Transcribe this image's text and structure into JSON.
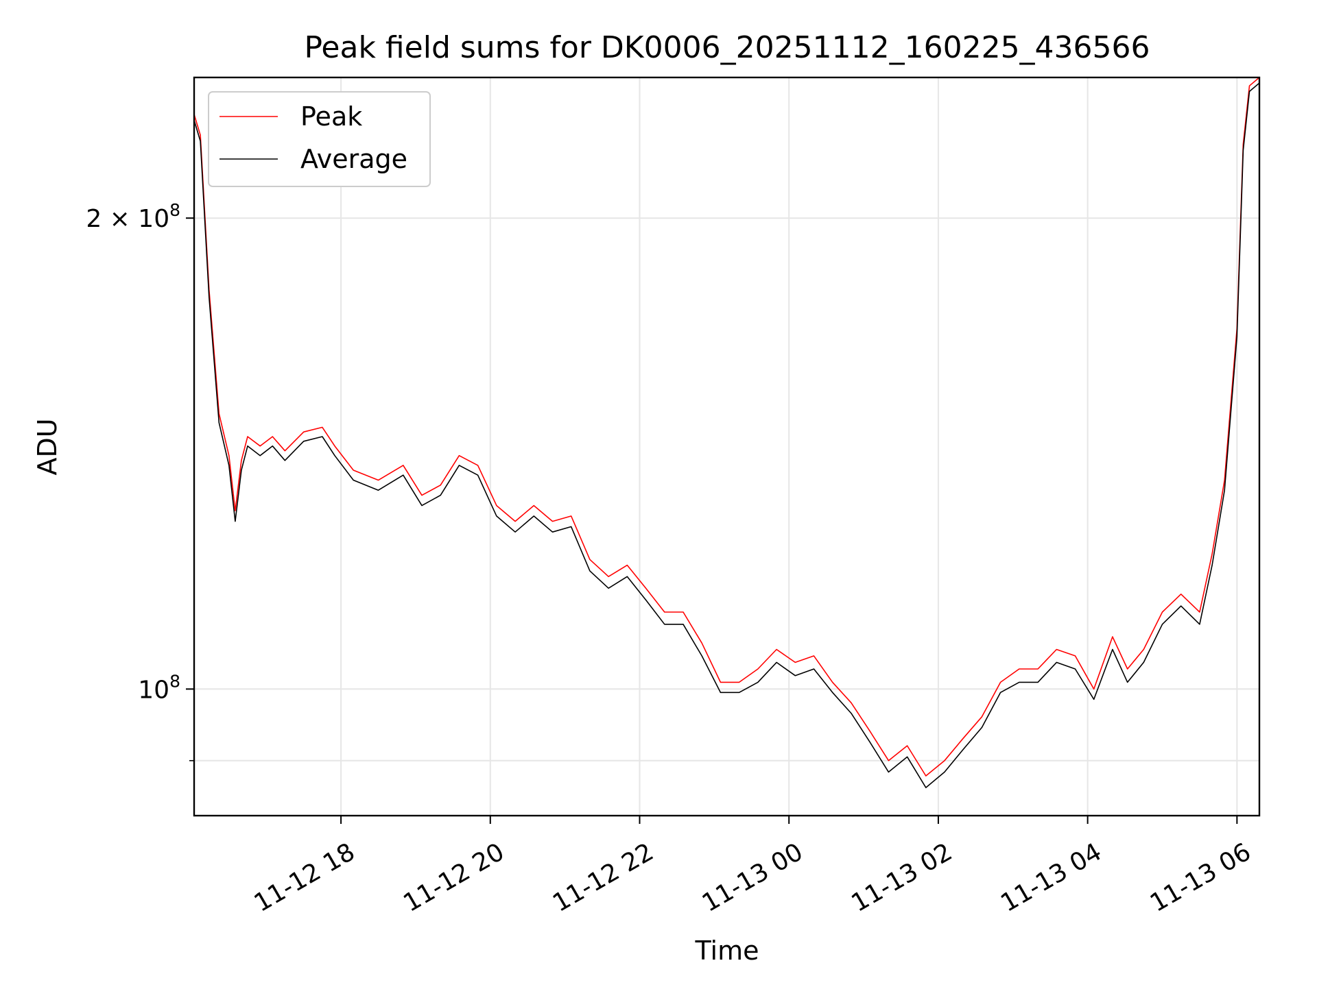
{
  "chart_data": {
    "type": "line",
    "title": "Peak field sums for DK0006_20251112_160225_436566",
    "xlabel": "Time",
    "ylabel": "ADU",
    "xscale": "time",
    "yscale": "log",
    "xlim": [
      "2025-11-12 16:02",
      "2025-11-13 06:18"
    ],
    "ylim": [
      83000000,
      246000000
    ],
    "xticks": [
      {
        "value": "2025-11-12 18:00",
        "label": "11-12 18"
      },
      {
        "value": "2025-11-12 20:00",
        "label": "11-12 20"
      },
      {
        "value": "2025-11-12 22:00",
        "label": "11-12 22"
      },
      {
        "value": "2025-11-13 00:00",
        "label": "11-13 00"
      },
      {
        "value": "2025-11-13 02:00",
        "label": "11-13 02"
      },
      {
        "value": "2025-11-13 04:00",
        "label": "11-13 04"
      },
      {
        "value": "2025-11-13 06:00",
        "label": "11-13 06"
      }
    ],
    "yticks_major": [
      {
        "value": 100000000,
        "label_base": "10",
        "label_exp": "8",
        "label_prefix": ""
      },
      {
        "value": 200000000,
        "label_base": "10",
        "label_exp": "8",
        "label_prefix": "2 × "
      }
    ],
    "yticks_minor": [
      90000000
    ],
    "grid": true,
    "legend_position": "top-left",
    "series": [
      {
        "name": "Peak",
        "color": "#ff0000",
        "x": [
          "2025-11-12 16:02",
          "2025-11-12 16:07",
          "2025-11-12 16:14",
          "2025-11-12 16:22",
          "2025-11-12 16:30",
          "2025-11-12 16:35",
          "2025-11-12 16:40",
          "2025-11-12 16:45",
          "2025-11-12 16:55",
          "2025-11-12 17:05",
          "2025-11-12 17:15",
          "2025-11-12 17:30",
          "2025-11-12 17:45",
          "2025-11-12 17:55",
          "2025-11-12 18:10",
          "2025-11-12 18:30",
          "2025-11-12 18:50",
          "2025-11-12 19:05",
          "2025-11-12 19:20",
          "2025-11-12 19:35",
          "2025-11-12 19:50",
          "2025-11-12 20:05",
          "2025-11-12 20:20",
          "2025-11-12 20:35",
          "2025-11-12 20:50",
          "2025-11-12 21:05",
          "2025-11-12 21:20",
          "2025-11-12 21:35",
          "2025-11-12 21:50",
          "2025-11-12 22:05",
          "2025-11-12 22:20",
          "2025-11-12 22:35",
          "2025-11-12 22:50",
          "2025-11-12 23:05",
          "2025-11-12 23:20",
          "2025-11-12 23:35",
          "2025-11-12 23:50",
          "2025-11-13 00:05",
          "2025-11-13 00:20",
          "2025-11-13 00:35",
          "2025-11-13 00:50",
          "2025-11-13 01:05",
          "2025-11-13 01:20",
          "2025-11-13 01:35",
          "2025-11-13 01:50",
          "2025-11-13 02:05",
          "2025-11-13 02:20",
          "2025-11-13 02:35",
          "2025-11-13 02:50",
          "2025-11-13 03:05",
          "2025-11-13 03:20",
          "2025-11-13 03:35",
          "2025-11-13 03:50",
          "2025-11-13 04:05",
          "2025-11-13 04:20",
          "2025-11-13 04:32",
          "2025-11-13 04:45",
          "2025-11-13 05:00",
          "2025-11-13 05:15",
          "2025-11-13 05:30",
          "2025-11-13 05:40",
          "2025-11-13 05:50",
          "2025-11-13 06:00",
          "2025-11-13 06:05",
          "2025-11-13 06:10",
          "2025-11-13 06:18"
        ],
        "y": [
          233000000,
          226000000,
          180000000,
          150000000,
          141000000,
          130000000,
          140000000,
          145000000,
          143000000,
          145000000,
          142000000,
          146000000,
          147000000,
          143000000,
          138000000,
          136000000,
          139000000,
          133000000,
          135000000,
          141000000,
          139000000,
          131000000,
          128000000,
          131000000,
          128000000,
          129000000,
          121000000,
          118000000,
          120000000,
          116000000,
          112000000,
          112000000,
          107000000,
          101000000,
          101000000,
          103000000,
          106000000,
          104000000,
          105000000,
          101000000,
          98000000,
          94000000,
          90000000,
          92000000,
          88000000,
          90000000,
          93000000,
          96000000,
          101000000,
          103000000,
          103000000,
          106000000,
          105000000,
          100000000,
          108000000,
          103000000,
          106000000,
          112000000,
          115000000,
          112000000,
          122000000,
          136000000,
          170000000,
          223000000,
          243000000,
          246000000
        ]
      },
      {
        "name": "Average",
        "color": "#000000",
        "x": [
          "2025-11-12 16:02",
          "2025-11-12 16:07",
          "2025-11-12 16:14",
          "2025-11-12 16:22",
          "2025-11-12 16:30",
          "2025-11-12 16:35",
          "2025-11-12 16:40",
          "2025-11-12 16:45",
          "2025-11-12 16:55",
          "2025-11-12 17:05",
          "2025-11-12 17:15",
          "2025-11-12 17:30",
          "2025-11-12 17:45",
          "2025-11-12 17:55",
          "2025-11-12 18:10",
          "2025-11-12 18:30",
          "2025-11-12 18:50",
          "2025-11-12 19:05",
          "2025-11-12 19:20",
          "2025-11-12 19:35",
          "2025-11-12 19:50",
          "2025-11-12 20:05",
          "2025-11-12 20:20",
          "2025-11-12 20:35",
          "2025-11-12 20:50",
          "2025-11-12 21:05",
          "2025-11-12 21:20",
          "2025-11-12 21:35",
          "2025-11-12 21:50",
          "2025-11-12 22:05",
          "2025-11-12 22:20",
          "2025-11-12 22:35",
          "2025-11-12 22:50",
          "2025-11-12 23:05",
          "2025-11-12 23:20",
          "2025-11-12 23:35",
          "2025-11-12 23:50",
          "2025-11-13 00:05",
          "2025-11-13 00:20",
          "2025-11-13 00:35",
          "2025-11-13 00:50",
          "2025-11-13 01:05",
          "2025-11-13 01:20",
          "2025-11-13 01:35",
          "2025-11-13 01:50",
          "2025-11-13 02:05",
          "2025-11-13 02:20",
          "2025-11-13 02:35",
          "2025-11-13 02:50",
          "2025-11-13 03:05",
          "2025-11-13 03:20",
          "2025-11-13 03:35",
          "2025-11-13 03:50",
          "2025-11-13 04:05",
          "2025-11-13 04:20",
          "2025-11-13 04:32",
          "2025-11-13 04:45",
          "2025-11-13 05:00",
          "2025-11-13 05:15",
          "2025-11-13 05:30",
          "2025-11-13 05:40",
          "2025-11-13 05:50",
          "2025-11-13 06:00",
          "2025-11-13 06:05",
          "2025-11-13 06:10",
          "2025-11-13 06:18"
        ],
        "y": [
          231000000,
          224000000,
          178000000,
          148000000,
          139000000,
          128000000,
          138000000,
          143000000,
          141000000,
          143000000,
          140000000,
          144000000,
          145000000,
          141000000,
          136000000,
          134000000,
          137000000,
          131000000,
          133000000,
          139000000,
          137000000,
          129000000,
          126000000,
          129000000,
          126000000,
          127000000,
          119000000,
          116000000,
          118000000,
          114000000,
          110000000,
          110000000,
          105000000,
          99500000,
          99500000,
          101000000,
          104000000,
          102000000,
          103000000,
          99500000,
          96500000,
          92500000,
          88500000,
          90500000,
          86500000,
          88500000,
          91500000,
          94500000,
          99500000,
          101000000,
          101000000,
          104000000,
          103000000,
          98500000,
          106000000,
          101000000,
          104000000,
          110000000,
          113000000,
          110000000,
          120000000,
          134000000,
          168000000,
          221000000,
          241000000,
          244000000
        ]
      }
    ]
  }
}
